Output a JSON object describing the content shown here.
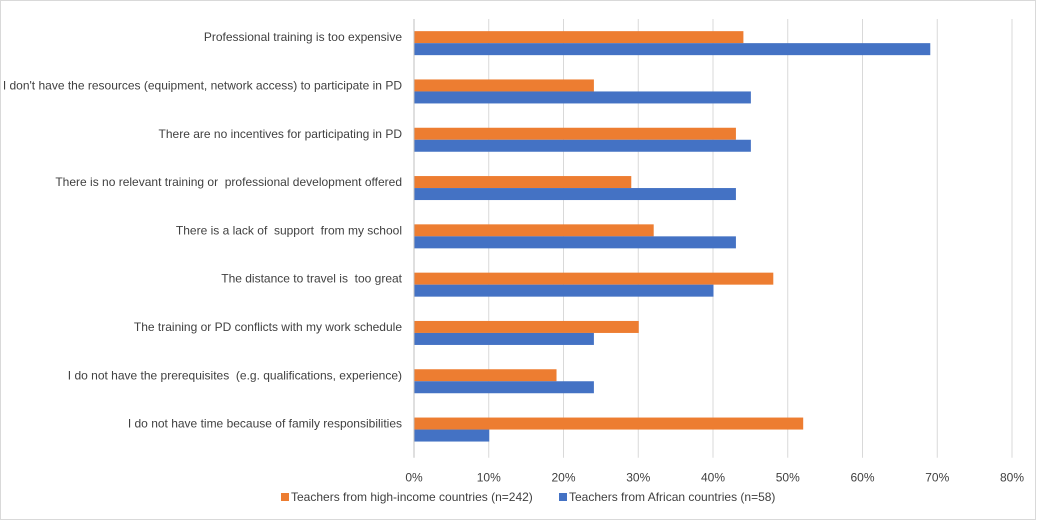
{
  "chart_data": {
    "type": "bar",
    "orientation": "horizontal",
    "categories": [
      "Professional training is too expensive",
      "I don't have the resources (equipment, network access) to participate in PD",
      "There are no incentives for participating in PD",
      "There is no relevant training or  professional development offered",
      "There is a lack of  support  from my school",
      "The distance to travel is  too great",
      "The training or PD conflicts with my work schedule",
      "I do not have the prerequisites  (e.g. qualifications, experience)",
      "I do not have time because of family responsibilities"
    ],
    "series": [
      {
        "name": "Teachers from high-income countries (n=242)",
        "color": "#ED7D31",
        "values": [
          44,
          24,
          43,
          29,
          32,
          48,
          30,
          19,
          52
        ]
      },
      {
        "name": "Teachers from African countries (n=58)",
        "color": "#4472C4",
        "values": [
          69,
          45,
          45,
          43,
          43,
          40,
          24,
          24,
          10
        ]
      }
    ],
    "x_ticks": [
      "0%",
      "10%",
      "20%",
      "30%",
      "40%",
      "50%",
      "60%",
      "70%",
      "80%"
    ],
    "xlim": [
      0,
      80
    ],
    "grid": true,
    "legend_position": "bottom",
    "title": "",
    "xlabel": "",
    "ylabel": ""
  }
}
